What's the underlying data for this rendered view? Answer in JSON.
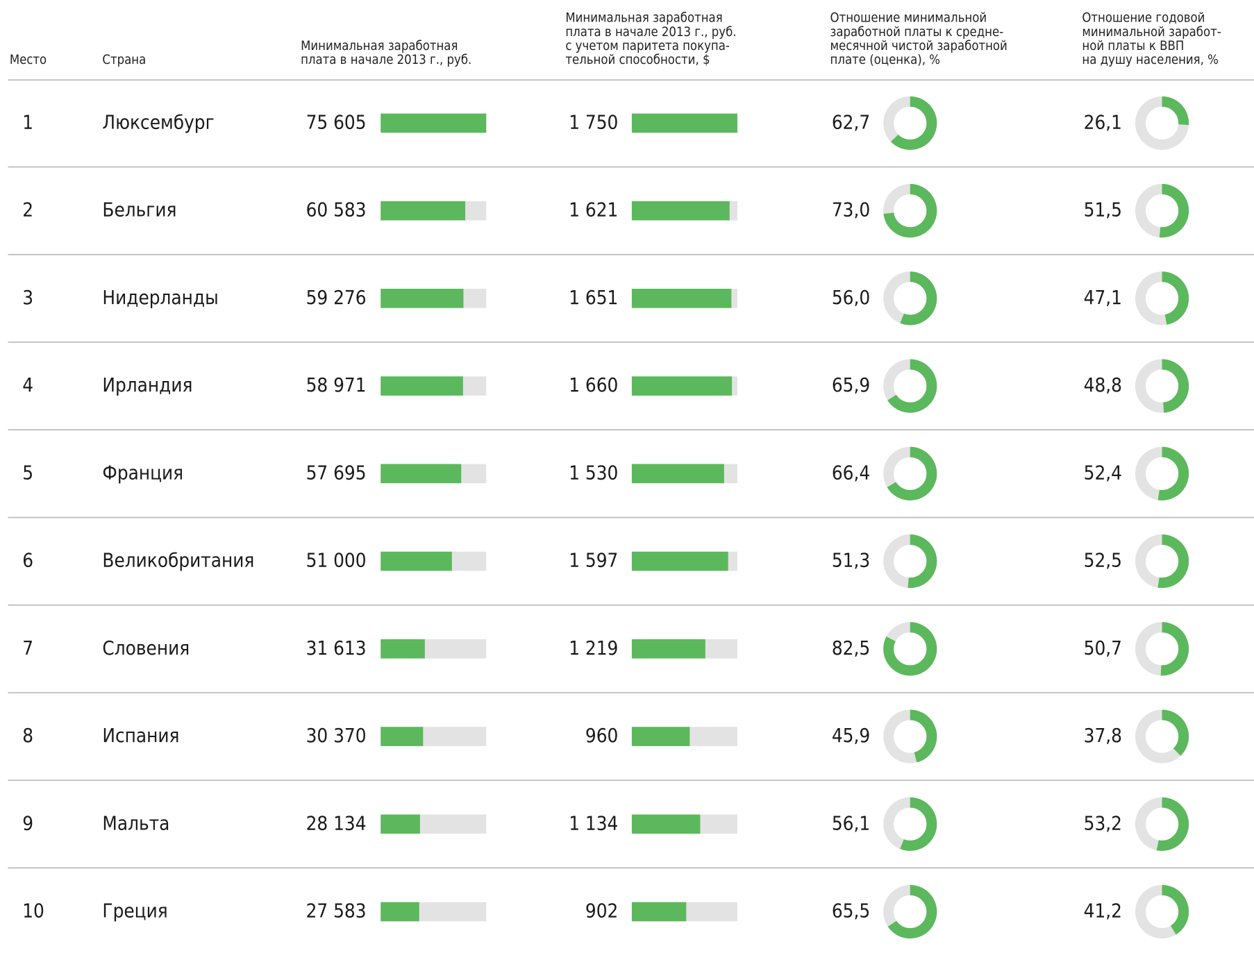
{
  "table": {
    "headers": [
      [
        "Место"
      ],
      [
        "Страна"
      ],
      [
        "Минимальная заработная",
        "плата в начале 2013 г., руб."
      ],
      [
        "Минимальная заработная",
        "плата в начале 2013 г., руб.",
        "с учетом паритета покупа-",
        "тельной способности, $"
      ],
      [
        "Отношение минимальной",
        "заработной платы к средне-",
        "месячной чистой заработной",
        "плате (оценка), %"
      ],
      [
        "Отношение годовой",
        "минимальной заработ-",
        "ной платы к ВВП",
        "на душу населения, %"
      ]
    ],
    "rows": [
      [
        1,
        "Люксембург",
        {
          "value": 75605,
          "label": "75 605"
        },
        {
          "value": 1750,
          "label": "1 750"
        },
        {
          "value": 62.7,
          "label": "62,7"
        },
        {
          "value": 26.1,
          "label": "26,1"
        }
      ],
      [
        2,
        "Бельгия",
        {
          "value": 60583,
          "label": "60 583"
        },
        {
          "value": 1621,
          "label": "1 621"
        },
        {
          "value": 73.0,
          "label": "73,0"
        },
        {
          "value": 51.5,
          "label": "51,5"
        }
      ],
      [
        3,
        "Нидерланды",
        {
          "value": 59276,
          "label": "59 276"
        },
        {
          "value": 1651,
          "label": "1 651"
        },
        {
          "value": 56.0,
          "label": "56,0"
        },
        {
          "value": 47.1,
          "label": "47,1"
        }
      ],
      [
        4,
        "Ирландия",
        {
          "value": 58971,
          "label": "58 971"
        },
        {
          "value": 1660,
          "label": "1 660"
        },
        {
          "value": 65.9,
          "label": "65,9"
        },
        {
          "value": 48.8,
          "label": "48,8"
        }
      ],
      [
        5,
        "Франция",
        {
          "value": 57695,
          "label": "57 695"
        },
        {
          "value": 1530,
          "label": "1 530"
        },
        {
          "value": 66.4,
          "label": "66,4"
        },
        {
          "value": 52.4,
          "label": "52,4"
        }
      ],
      [
        6,
        "Великобритания",
        {
          "value": 51000,
          "label": "51 000"
        },
        {
          "value": 1597,
          "label": "1 597"
        },
        {
          "value": 51.3,
          "label": "51,3"
        },
        {
          "value": 52.5,
          "label": "52,5"
        }
      ],
      [
        7,
        "Словения",
        {
          "value": 31613,
          "label": "31 613"
        },
        {
          "value": 1219,
          "label": "1 219"
        },
        {
          "value": 82.5,
          "label": "82,5"
        },
        {
          "value": 50.7,
          "label": "50,7"
        }
      ],
      [
        8,
        "Испания",
        {
          "value": 30370,
          "label": "30 370"
        },
        {
          "value": 960,
          "label": "960"
        },
        {
          "value": 45.9,
          "label": "45,9"
        },
        {
          "value": 37.8,
          "label": "37,8"
        }
      ],
      [
        9,
        "Мальта",
        {
          "value": 28134,
          "label": "28 134"
        },
        {
          "value": 1134,
          "label": "1 134"
        },
        {
          "value": 56.1,
          "label": "56,1"
        },
        {
          "value": 53.2,
          "label": "53,2"
        }
      ],
      [
        10,
        "Греция",
        {
          "value": 27583,
          "label": "27 583"
        },
        {
          "value": 902,
          "label": "902"
        },
        {
          "value": 65.5,
          "label": "65,5"
        },
        {
          "value": 41.2,
          "label": "41,2"
        }
      ]
    ]
  }
}
